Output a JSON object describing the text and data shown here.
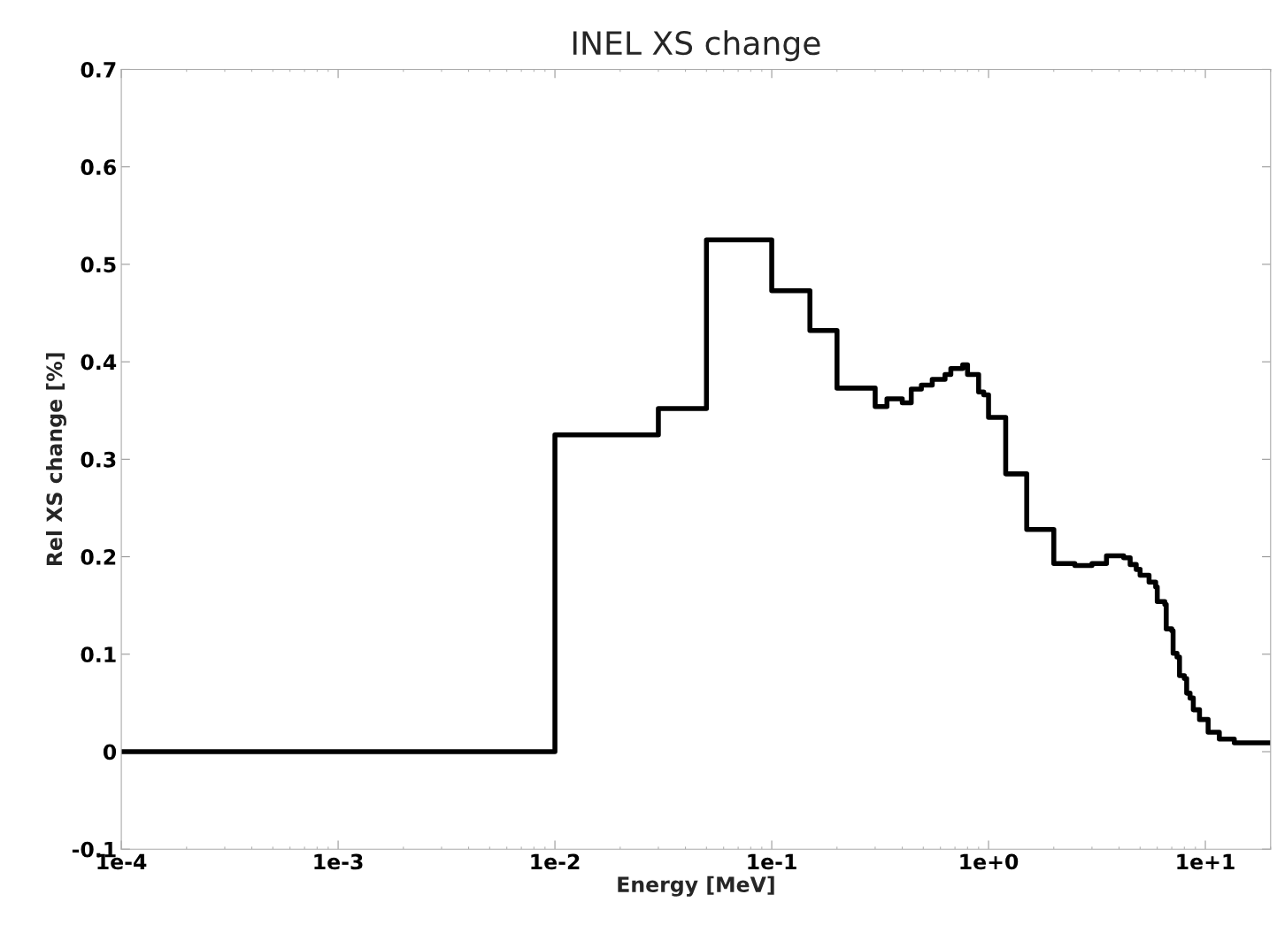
{
  "chart_data": {
    "type": "step",
    "title": "INEL XS change",
    "xlabel": "Energy [MeV]",
    "ylabel": "Rel XS change [%]",
    "log": "x",
    "grid": false,
    "xlim": [
      0.0001,
      20
    ],
    "xticks": [
      {
        "value": 0.0001,
        "label": "1e-4"
      },
      {
        "value": 0.001,
        "label": "1e-3"
      },
      {
        "value": 0.01,
        "label": "1e-2"
      },
      {
        "value": 0.1,
        "label": "1e-1"
      },
      {
        "value": 1,
        "label": "1e+0"
      },
      {
        "value": 10,
        "label": "1e+1"
      }
    ],
    "ylim": [
      -0.1,
      0.7
    ],
    "yticks": [
      -0.1,
      0,
      0.1,
      0.2,
      0.3,
      0.4,
      0.5,
      0.6,
      0.7
    ],
    "x": [
      0.0001,
      0.01,
      0.03,
      0.05,
      0.1,
      0.15,
      0.2,
      0.3,
      0.34,
      0.4,
      0.44,
      0.49,
      0.55,
      0.63,
      0.67,
      0.76,
      0.8,
      0.9,
      0.95,
      1.0,
      1.2,
      1.5,
      2,
      2.5,
      3,
      3.5,
      4.2,
      4.5,
      4.8,
      5,
      5.5,
      5.9,
      6,
      6.5,
      6.6,
      7,
      7.1,
      7.4,
      7.6,
      8,
      8.2,
      8.5,
      8.8,
      9.4,
      10.3,
      11.6,
      13.6,
      20
    ],
    "series": [
      {
        "color": "#000000",
        "values": [
          0,
          0.325,
          0.352,
          0.525,
          0.473,
          0.432,
          0.373,
          0.354,
          0.362,
          0.358,
          0.372,
          0.376,
          0.382,
          0.387,
          0.393,
          0.397,
          0.387,
          0.369,
          0.366,
          0.343,
          0.285,
          0.228,
          0.193,
          0.191,
          0.193,
          0.201,
          0.199,
          0.192,
          0.187,
          0.181,
          0.174,
          0.169,
          0.154,
          0.151,
          0.126,
          0.124,
          0.101,
          0.097,
          0.078,
          0.075,
          0.06,
          0.055,
          0.043,
          0.033,
          0.02,
          0.013,
          0.009,
          0.009
        ]
      }
    ]
  }
}
